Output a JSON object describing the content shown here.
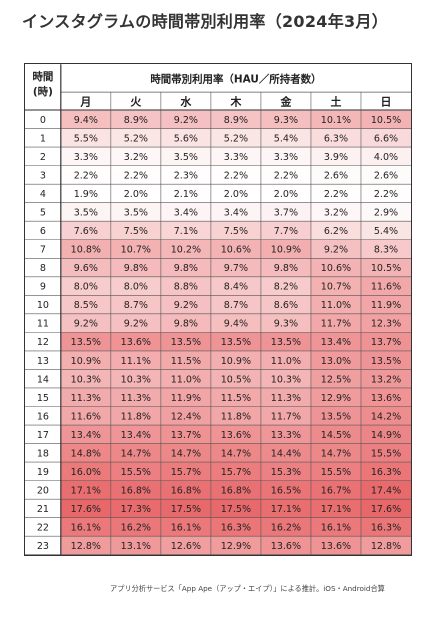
{
  "title": "インスタグラムの時間帯別利用率（2024年3月）",
  "footnote": "アプリ分析サービス「App Ape（アップ・エイプ）」による推計。iOS・Android合算",
  "chart_data": {
    "type": "heatmap",
    "row_header": "時間\n(時)",
    "column_group_header": "時間帯別利用率（HAU／所持者数）",
    "columns": [
      "月",
      "火",
      "水",
      "木",
      "金",
      "土",
      "日"
    ],
    "rows": [
      "0",
      "1",
      "2",
      "3",
      "4",
      "5",
      "6",
      "7",
      "8",
      "9",
      "10",
      "11",
      "12",
      "13",
      "14",
      "15",
      "16",
      "17",
      "18",
      "19",
      "20",
      "21",
      "22",
      "23"
    ],
    "values": [
      [
        9.4,
        8.9,
        9.2,
        8.9,
        9.3,
        10.1,
        10.5
      ],
      [
        5.5,
        5.2,
        5.6,
        5.2,
        5.4,
        6.3,
        6.6
      ],
      [
        3.3,
        3.2,
        3.5,
        3.3,
        3.3,
        3.9,
        4.0
      ],
      [
        2.2,
        2.2,
        2.3,
        2.2,
        2.2,
        2.6,
        2.6
      ],
      [
        1.9,
        2.0,
        2.1,
        2.0,
        2.0,
        2.2,
        2.2
      ],
      [
        3.5,
        3.5,
        3.4,
        3.4,
        3.7,
        3.2,
        2.9
      ],
      [
        7.6,
        7.5,
        7.1,
        7.5,
        7.7,
        6.2,
        5.4
      ],
      [
        10.8,
        10.7,
        10.2,
        10.6,
        10.9,
        9.2,
        8.3
      ],
      [
        9.6,
        9.8,
        9.8,
        9.7,
        9.8,
        10.6,
        10.5
      ],
      [
        8.0,
        8.0,
        8.8,
        8.4,
        8.2,
        10.7,
        11.6
      ],
      [
        8.5,
        8.7,
        9.2,
        8.7,
        8.6,
        11.0,
        11.9
      ],
      [
        9.2,
        9.2,
        9.8,
        9.4,
        9.3,
        11.7,
        12.3
      ],
      [
        13.5,
        13.6,
        13.5,
        13.5,
        13.5,
        13.4,
        13.7
      ],
      [
        10.9,
        11.1,
        11.5,
        10.9,
        11.0,
        13.0,
        13.5
      ],
      [
        10.3,
        10.3,
        11.0,
        10.5,
        10.3,
        12.5,
        13.2
      ],
      [
        11.3,
        11.3,
        11.9,
        11.5,
        11.3,
        12.9,
        13.6
      ],
      [
        11.6,
        11.8,
        12.4,
        11.8,
        11.7,
        13.5,
        14.2
      ],
      [
        13.4,
        13.4,
        13.7,
        13.6,
        13.3,
        14.5,
        14.9
      ],
      [
        14.8,
        14.7,
        14.7,
        14.7,
        14.4,
        14.7,
        15.5
      ],
      [
        16.0,
        15.5,
        15.7,
        15.7,
        15.3,
        15.5,
        16.3
      ],
      [
        17.1,
        16.8,
        16.8,
        16.8,
        16.5,
        16.7,
        17.4
      ],
      [
        17.6,
        17.3,
        17.5,
        17.5,
        17.1,
        17.1,
        17.6
      ],
      [
        16.1,
        16.2,
        16.1,
        16.3,
        16.2,
        16.1,
        16.3
      ],
      [
        12.8,
        13.1,
        12.6,
        12.9,
        13.6,
        13.6,
        12.8
      ]
    ],
    "value_suffix": "%",
    "color_low": "#ffffff",
    "color_high": "#e8686a"
  }
}
